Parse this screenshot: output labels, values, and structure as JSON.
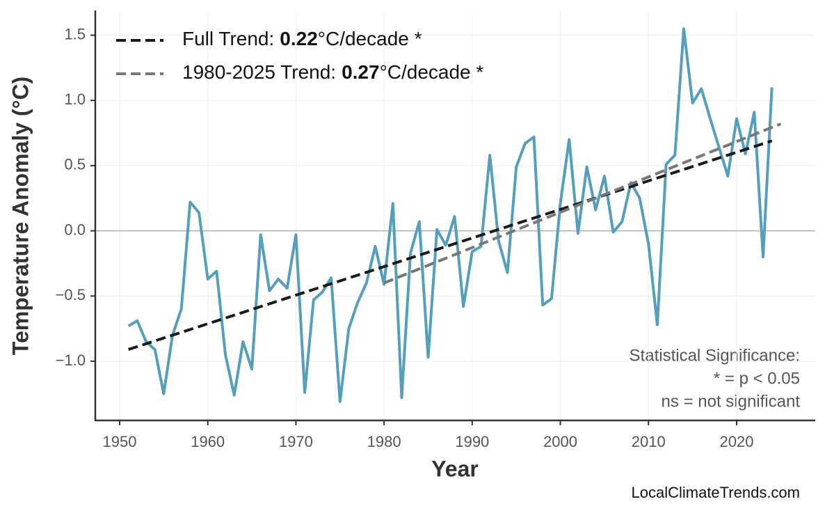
{
  "chart_data": {
    "type": "line",
    "xlabel": "Year",
    "ylabel": "Temperature Anomaly (°C)",
    "xlim": [
      1947.24,
      2028.92
    ],
    "ylim": [
      -1.454,
      1.69
    ],
    "xticks": [
      1950,
      1960,
      1970,
      1980,
      1990,
      2000,
      2010,
      2020
    ],
    "yticks": [
      1.5,
      {
        "value": 1.0,
        "label": "1.0"
      },
      0.5,
      {
        "value": 0.0,
        "label": "0.0"
      },
      {
        "value": -0.5,
        "label": "−0.5"
      },
      {
        "value": -1.0,
        "label": "−1.0"
      }
    ],
    "grid": true,
    "hline": 0,
    "hline_color": "#b0b0b0",
    "legend": "upper left",
    "series": [
      {
        "color": "#559fbe",
        "dashed": false,
        "x": [
          1951,
          1952,
          1953,
          1954,
          1955,
          1956,
          1957,
          1958,
          1959,
          1960,
          1961,
          1962,
          1963,
          1964,
          1965,
          1966,
          1967,
          1968,
          1969,
          1970,
          1971,
          1972,
          1973,
          1974,
          1975,
          1976,
          1977,
          1978,
          1979,
          1980,
          1981,
          1982,
          1983,
          1984,
          1985,
          1986,
          1987,
          1988,
          1989,
          1990,
          1991,
          1992,
          1993,
          1994,
          1995,
          1996,
          1997,
          1998,
          1999,
          2000,
          2001,
          2002,
          2003,
          2004,
          2005,
          2006,
          2007,
          2008,
          2009,
          2010,
          2011,
          2012,
          2013,
          2014,
          2015,
          2016,
          2017,
          2018,
          2019,
          2020,
          2021,
          2022,
          2023,
          2024
        ],
        "values": [
          -0.73,
          -0.69,
          -0.85,
          -0.91,
          -1.25,
          -0.8,
          -0.6,
          0.22,
          0.14,
          -0.37,
          -0.31,
          -0.95,
          -1.26,
          -0.85,
          -1.06,
          -0.03,
          -0.46,
          -0.37,
          -0.44,
          -0.03,
          -1.24,
          -0.53,
          -0.47,
          -0.36,
          -1.31,
          -0.75,
          -0.55,
          -0.4,
          -0.12,
          -0.41,
          0.21,
          -1.28,
          -0.17,
          0.07,
          -0.97,
          0.01,
          -0.11,
          0.11,
          -0.58,
          -0.16,
          -0.12,
          0.58,
          -0.08,
          -0.32,
          0.49,
          0.67,
          0.72,
          -0.57,
          -0.52,
          0.21,
          0.7,
          -0.02,
          0.49,
          0.16,
          0.42,
          -0.01,
          0.07,
          0.37,
          0.25,
          -0.1,
          -0.72,
          0.51,
          0.58,
          1.55,
          0.98,
          1.09,
          0.86,
          0.64,
          0.42,
          0.86,
          0.59,
          0.91,
          -0.2,
          1.1
        ]
      },
      {
        "name": "Full Trend:",
        "trend": 0.22,
        "unit": "°C/decade *",
        "color": "#1a1a1a",
        "dashed": true,
        "x": [
          1951,
          2024
        ],
        "values": [
          -0.91,
          0.69
        ]
      },
      {
        "name": "1980-2025 Trend:",
        "trend": 0.27,
        "unit": "°C/decade *",
        "color": "#777777",
        "dashed": true,
        "x": [
          1980,
          2025
        ],
        "values": [
          -0.4,
          0.82
        ]
      }
    ],
    "annotation": [
      "Statistical Significance:",
      "* = p < 0.05",
      "ns = not significant"
    ],
    "source": "LocalClimateTrends.com"
  }
}
